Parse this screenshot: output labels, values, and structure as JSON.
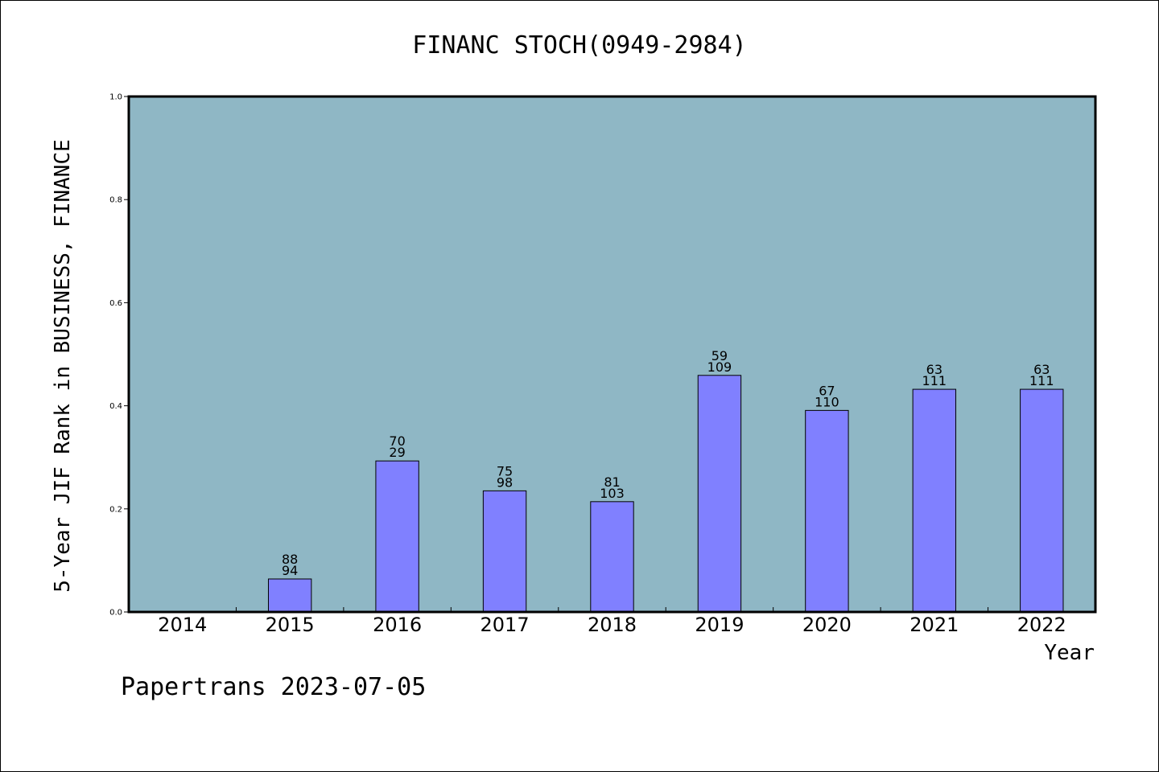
{
  "chart_data": {
    "type": "bar",
    "title": "FINANC STOCH(0949-2984)",
    "xlabel": "Year",
    "ylabel": "5-Year JIF Rank in BUSINESS, FINANCE",
    "ylim": [
      0,
      1.0
    ],
    "yticks": [
      "0.0",
      "0.2",
      "0.4",
      "0.6",
      "0.8",
      "1.0"
    ],
    "categories": [
      "2014",
      "2015",
      "2016",
      "2017",
      "2018",
      "2019",
      "2020",
      "2021",
      "2022"
    ],
    "values": [
      null,
      0.064,
      0.293,
      0.235,
      0.214,
      0.459,
      0.391,
      0.432,
      0.432
    ],
    "labels_top": [
      "",
      "88",
      "70",
      "75",
      "81",
      "59",
      "67",
      "63",
      "63"
    ],
    "labels_bottom": [
      "",
      "94",
      "29",
      "98",
      "103",
      "109",
      "110",
      "111",
      "111"
    ],
    "grid": false,
    "colors": {
      "plot_background": "#8fb7c5",
      "bar_fill": "#8080ff",
      "bar_stroke": "#000000"
    }
  },
  "footer": "Papertrans 2023-07-05"
}
